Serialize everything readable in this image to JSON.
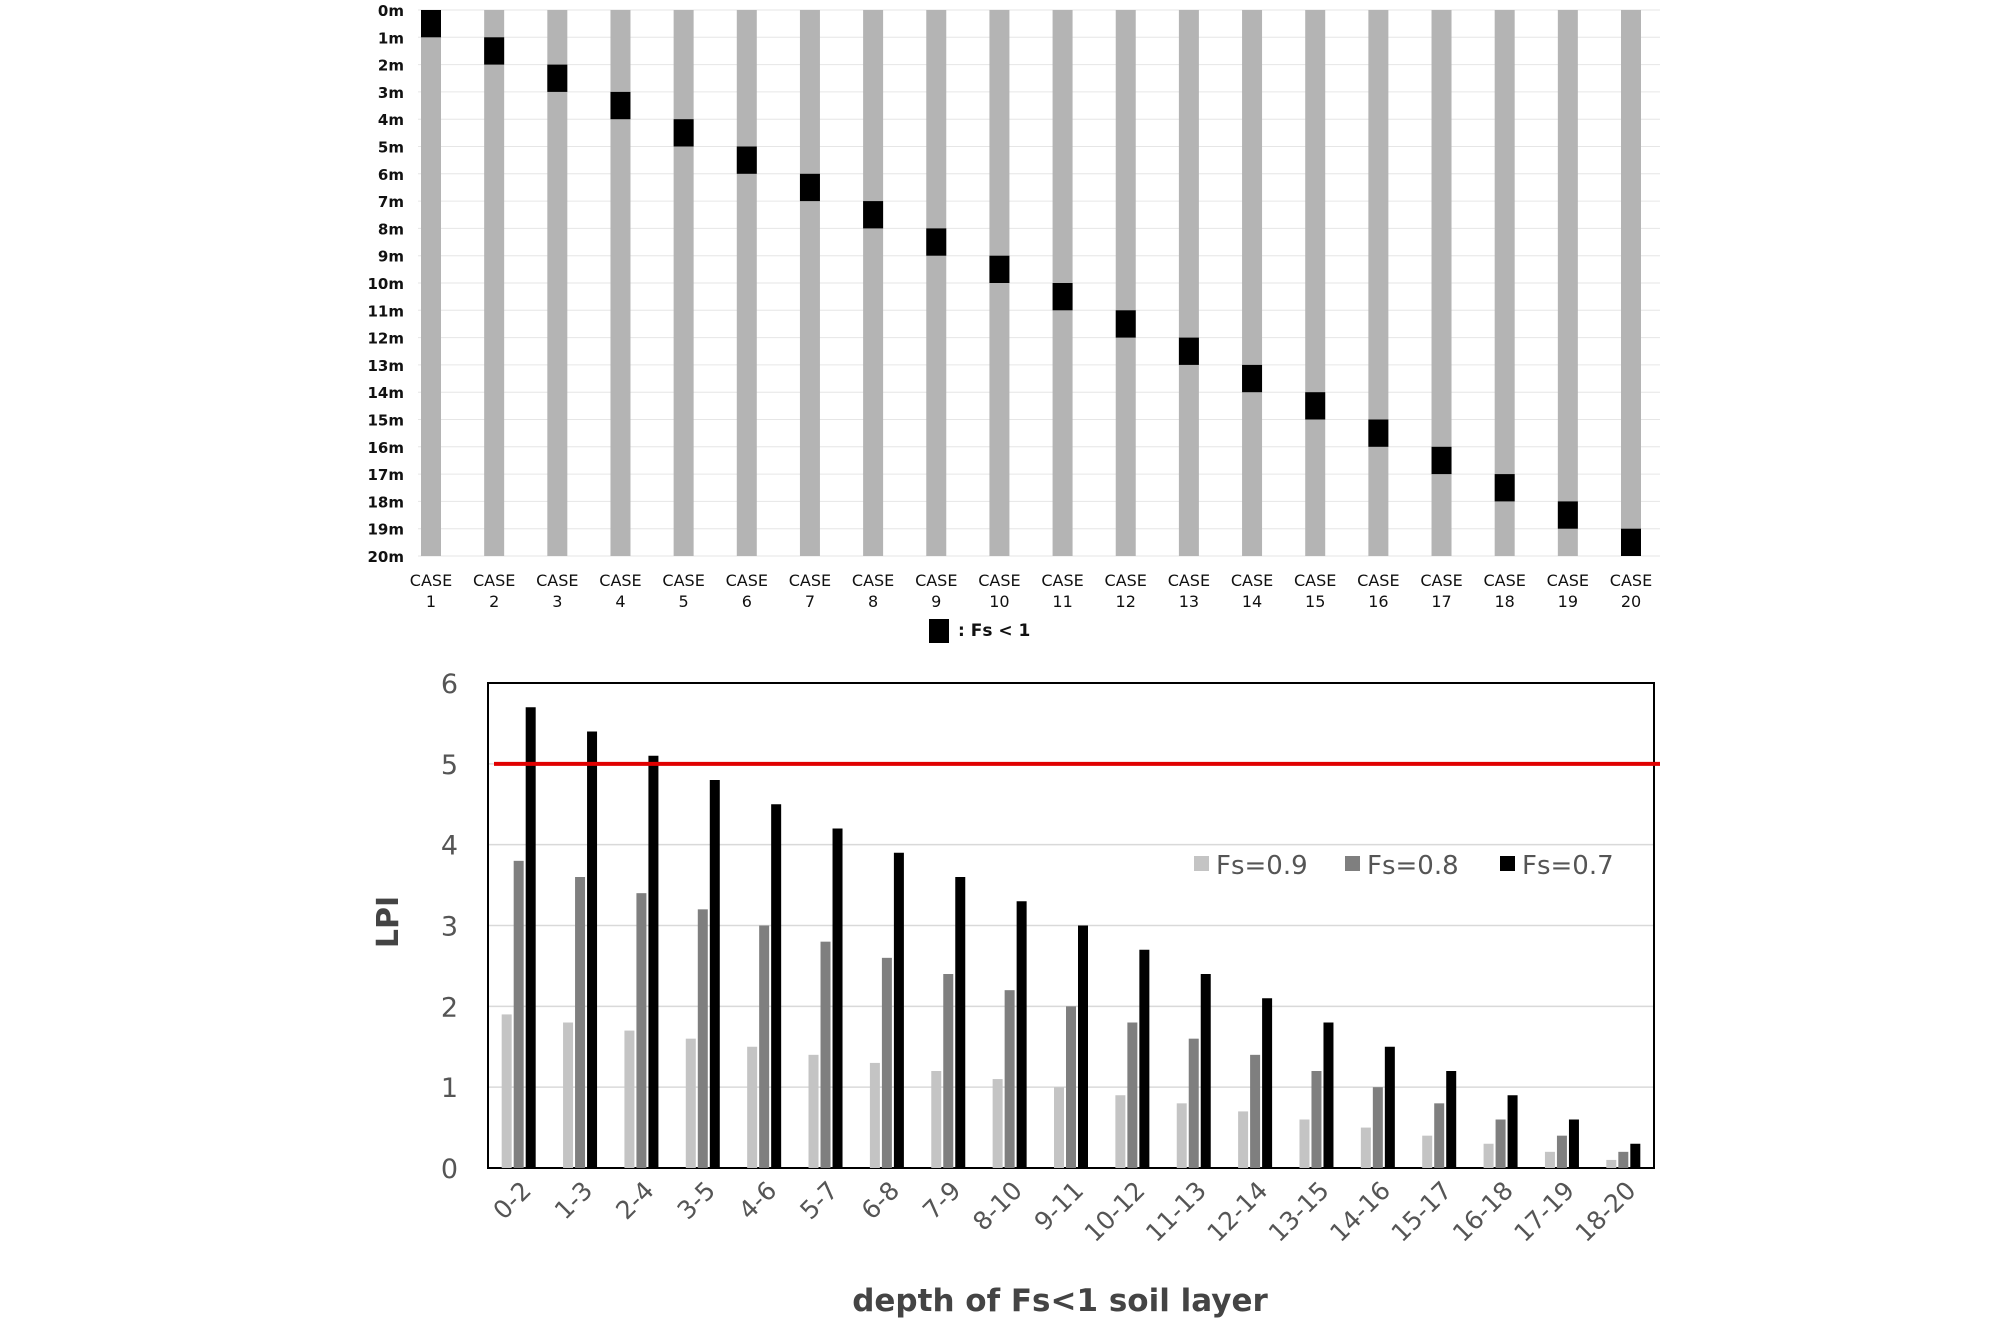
{
  "chart_data": [
    {
      "type": "bar",
      "depth_labels": [
        "0m",
        "1m",
        "2m",
        "3m",
        "4m",
        "5m",
        "6m",
        "7m",
        "8m",
        "9m",
        "10m",
        "11m",
        "12m",
        "13m",
        "14m",
        "15m",
        "16m",
        "17m",
        "18m",
        "19m",
        "20m"
      ],
      "cases": [
        {
          "line1": "CASE",
          "line2": "1"
        },
        {
          "line1": "CASE",
          "line2": "2"
        },
        {
          "line1": "CASE",
          "line2": "3"
        },
        {
          "line1": "CASE",
          "line2": "4"
        },
        {
          "line1": "CASE",
          "line2": "5"
        },
        {
          "line1": "CASE",
          "line2": "6"
        },
        {
          "line1": "CASE",
          "line2": "7"
        },
        {
          "line1": "CASE",
          "line2": "8"
        },
        {
          "line1": "CASE",
          "line2": "9"
        },
        {
          "line1": "CASE",
          "line2": "10"
        },
        {
          "line1": "CASE",
          "line2": "11"
        },
        {
          "line1": "CASE",
          "line2": "12"
        },
        {
          "line1": "CASE",
          "line2": "13"
        },
        {
          "line1": "CASE",
          "line2": "14"
        },
        {
          "line1": "CASE",
          "line2": "15"
        },
        {
          "line1": "CASE",
          "line2": "16"
        },
        {
          "line1": "CASE",
          "line2": "17"
        },
        {
          "line1": "CASE",
          "line2": "18"
        },
        {
          "line1": "CASE",
          "line2": "19"
        },
        {
          "line1": "CASE",
          "line2": "20"
        }
      ],
      "fs_layer_top_m": [
        0,
        1,
        2,
        3,
        4,
        5,
        6,
        7,
        8,
        9,
        10,
        11,
        12,
        13,
        14,
        15,
        16,
        17,
        18,
        19
      ],
      "fs_layer_thickness_m": 1,
      "profile_depth_m": 20,
      "legend_text": ": Fs < 1",
      "colors": {
        "soil": "#b4b4b4",
        "fs_layer": "#000000"
      }
    },
    {
      "type": "bar",
      "categories": [
        "0-2",
        "1-3",
        "2-4",
        "3-5",
        "4-6",
        "5-7",
        "6-8",
        "7-9",
        "8-10",
        "9-11",
        "10-12",
        "11-13",
        "12-14",
        "13-15",
        "14-16",
        "15-17",
        "16-18",
        "17-19",
        "18-20"
      ],
      "series": [
        {
          "name": "Fs=0.9",
          "color": "#c4c4c4",
          "values": [
            1.9,
            1.8,
            1.7,
            1.6,
            1.5,
            1.4,
            1.3,
            1.2,
            1.1,
            1.0,
            0.9,
            0.8,
            0.7,
            0.6,
            0.5,
            0.4,
            0.3,
            0.2,
            0.1
          ]
        },
        {
          "name": "Fs=0.8",
          "color": "#7f7f7f",
          "values": [
            3.8,
            3.6,
            3.4,
            3.2,
            3.0,
            2.8,
            2.6,
            2.4,
            2.2,
            2.0,
            1.8,
            1.6,
            1.4,
            1.2,
            1.0,
            0.8,
            0.6,
            0.4,
            0.2
          ]
        },
        {
          "name": "Fs=0.7",
          "color": "#000000",
          "values": [
            5.7,
            5.4,
            5.1,
            4.8,
            4.5,
            4.2,
            3.9,
            3.6,
            3.3,
            3.0,
            2.7,
            2.4,
            2.1,
            1.8,
            1.5,
            1.2,
            0.9,
            0.6,
            0.3
          ]
        }
      ],
      "ylabel": "LPI",
      "xlabel": "depth of Fs<1 soil layer",
      "ylim": [
        0,
        6
      ],
      "yticks": [
        "0",
        "1",
        "2",
        "3",
        "4",
        "5",
        "6"
      ],
      "threshold": {
        "value": 5,
        "color": "#e00000"
      },
      "grid": true,
      "legend_position": "upper-right"
    }
  ]
}
